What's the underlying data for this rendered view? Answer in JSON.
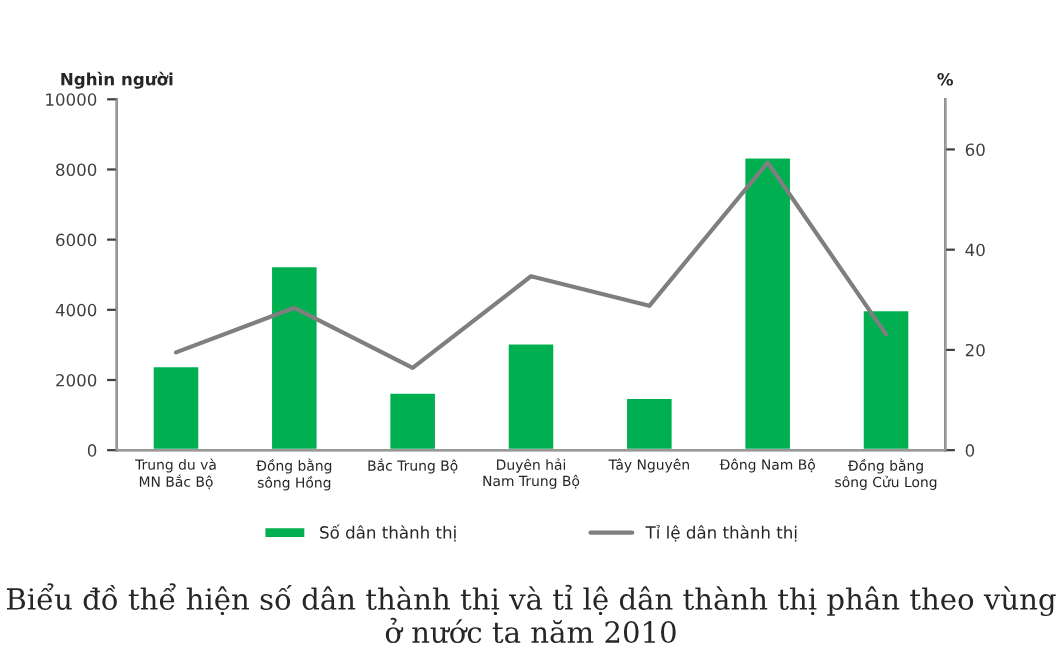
{
  "chart_data": {
    "type": "bar",
    "title": "Biểu đồ thể hiện số dân thành thị và tỉ lệ dân thành thị phân theo vùng ở nước ta năm 2010",
    "ylabel": "Nghìn người",
    "y2label": "%",
    "categories": [
      "Trung du và\nMN Bắc Bộ",
      "Đồng bằng\nsông Hồng",
      "Bắc Trung Bộ",
      "Duyên hải\nNam Trung Bộ",
      "Tây Nguyên",
      "Đông Nam Bộ",
      "Đồng bằng\nsông Cửu Long"
    ],
    "series": [
      {
        "name": "Số dân thành thị",
        "color": "#00b050",
        "values": [
          2400,
          5250,
          1650,
          3050,
          1500,
          8350,
          4000
        ]
      },
      {
        "name": "Tỉ lệ dân thành thị",
        "type": "line",
        "axis": "y2",
        "color": "#7f7f7f",
        "values": [
          19.5,
          28.4,
          16.4,
          34.7,
          28.8,
          57.4,
          23.1
        ]
      }
    ],
    "ylim": [
      0,
      10000
    ],
    "yticks": [
      0,
      2000,
      4000,
      6000,
      8000,
      10000
    ],
    "y2lim": [
      0,
      70
    ],
    "y2ticks": [
      0,
      20,
      40,
      60
    ],
    "grid": false,
    "legend": "bottom"
  }
}
